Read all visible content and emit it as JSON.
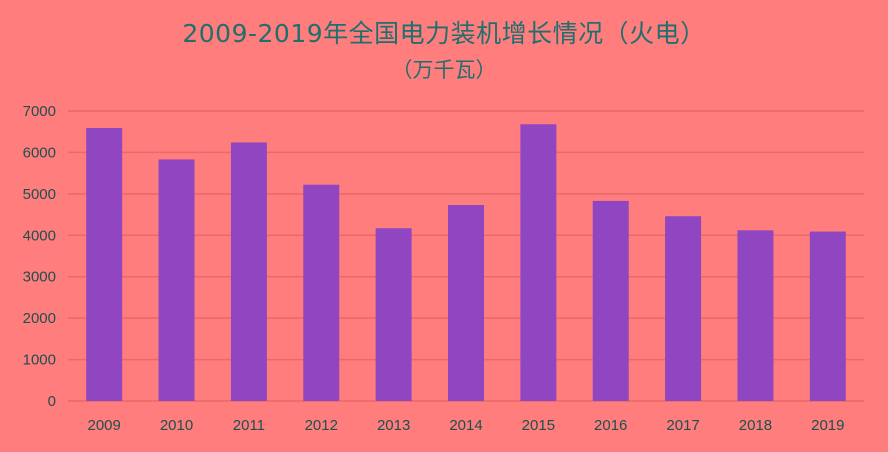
{
  "chart_data": {
    "type": "bar",
    "title": "2009-2019年全国电力装机增长情况（火电）",
    "subtitle": "（万千瓦）",
    "xlabel": "",
    "ylabel": "",
    "categories": [
      "2009",
      "2010",
      "2011",
      "2012",
      "2013",
      "2014",
      "2015",
      "2016",
      "2017",
      "2018",
      "2019"
    ],
    "values": [
      6590,
      5830,
      6240,
      5220,
      4170,
      4730,
      6680,
      4830,
      4460,
      4120,
      4090
    ],
    "ylim": [
      0,
      7000
    ],
    "yticks": [
      "0",
      "1000",
      "2000",
      "3000",
      "4000",
      "5000",
      "6000",
      "7000"
    ],
    "grid": true,
    "legend": "none",
    "colors": {
      "background": "#ff7d7d",
      "bar": "#9046c0",
      "grid": "#e86a6a",
      "title": "#1f6f6f"
    }
  }
}
